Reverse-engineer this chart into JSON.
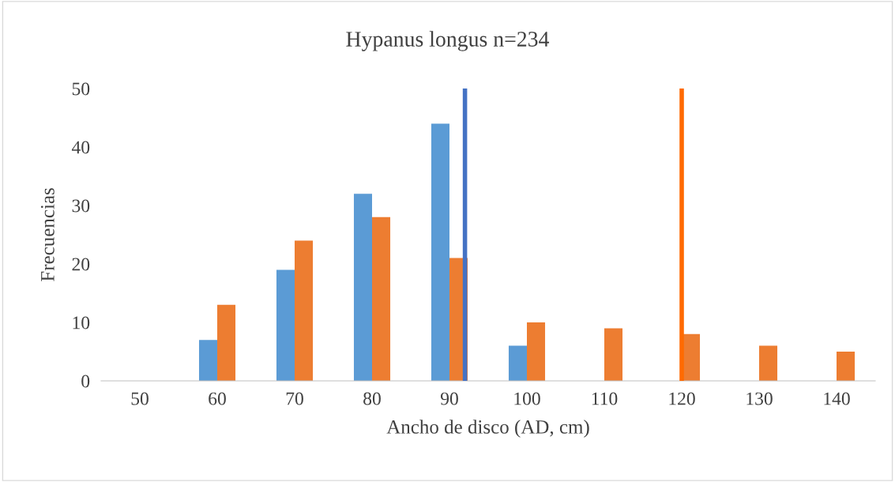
{
  "chart_data": {
    "type": "bar",
    "title": "Hypanus longus n=234",
    "xlabel": "Ancho de disco (AD, cm)",
    "ylabel": "Frecuencias",
    "x": [
      50,
      60,
      70,
      80,
      90,
      100,
      110,
      120,
      130,
      140
    ],
    "series": [
      {
        "color": "#5b9bd5",
        "values": [
          0,
          7,
          19,
          32,
          44,
          6,
          0,
          0,
          0,
          0
        ]
      },
      {
        "color": "#ed7d31",
        "values": [
          0,
          13,
          24,
          28,
          21,
          10,
          9,
          8,
          6,
          5
        ]
      }
    ],
    "xlim": [
      45,
      145
    ],
    "xticks": [
      50,
      60,
      70,
      80,
      90,
      100,
      110,
      120,
      130,
      140
    ],
    "ylim": [
      0,
      50
    ],
    "yticks": [
      0,
      10,
      20,
      30,
      40,
      50
    ],
    "ref_lines": [
      {
        "axis": "x",
        "value": 92,
        "color": "#4472c4"
      },
      {
        "axis": "x",
        "value": 120,
        "color": "#ff6a00"
      }
    ],
    "grid": false,
    "legend": false
  }
}
